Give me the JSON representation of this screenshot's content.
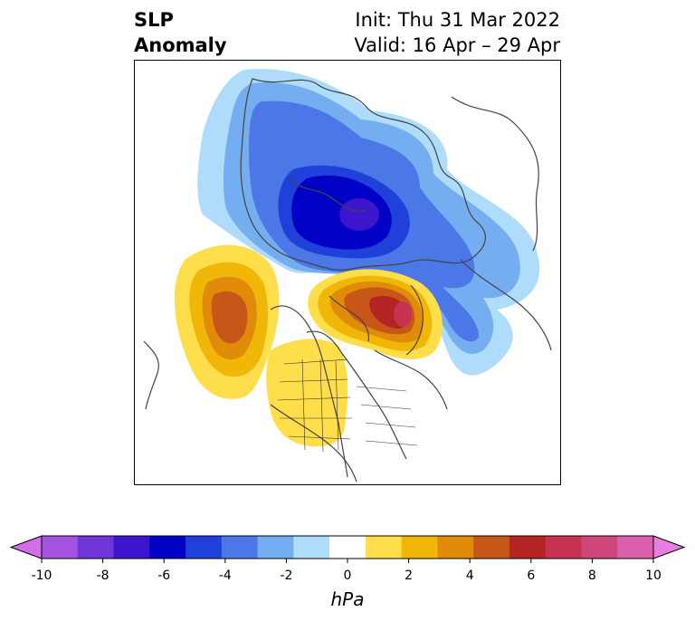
{
  "title": {
    "line1": "SLP",
    "line2": "Anomaly",
    "init": "Init: Thu 31 Mar 2022",
    "valid": "Valid: 16 Apr – 29 Apr"
  },
  "colorbar": {
    "unit": "hPa",
    "ticks": [
      "-10",
      "-8",
      "-6",
      "-4",
      "-2",
      "0",
      "2",
      "4",
      "6",
      "8",
      "10"
    ],
    "colors": [
      "#d36ee8",
      "#a353e0",
      "#7035d6",
      "#3b16cc",
      "#0202c7",
      "#2040da",
      "#4b78e6",
      "#75aef0",
      "#aedcfa",
      "#ffffff",
      "#fede4b",
      "#f1b708",
      "#e08b0a",
      "#c65719",
      "#b52424",
      "#c53351",
      "#ce467a",
      "#da5fad",
      "#e97ede"
    ],
    "range": [
      -10,
      10
    ]
  }
}
